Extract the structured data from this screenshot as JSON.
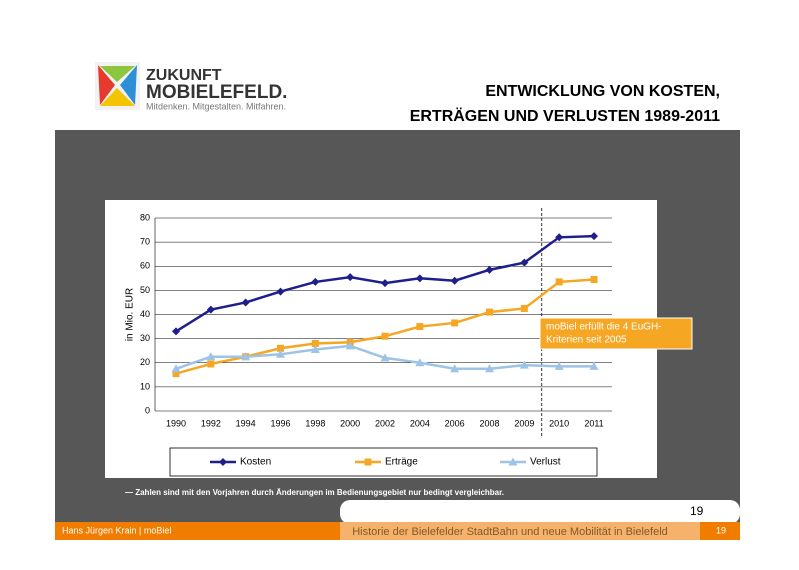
{
  "logo": {
    "line1": "ZUKUNFT",
    "line2": "MOBIELEFELD.",
    "tagline": "Mitdenken. Mitgestalten. Mitfahren."
  },
  "header": {
    "title_lines": [
      "ENTWICKLUNG VON KOSTEN,",
      "ERTRÄGEN UND VERLUSTEN 1989-2011"
    ]
  },
  "chart_data": {
    "type": "line",
    "y_label": "in Mio. EUR",
    "categories": [
      "1990",
      "1992",
      "1994",
      "1996",
      "1998",
      "2000",
      "2002",
      "2004",
      "2006",
      "2008",
      "2009",
      "2010",
      "2011"
    ],
    "series": [
      {
        "name": "Kosten",
        "color": "#1f1f8c",
        "marker": "diamond",
        "values": [
          33,
          42,
          45,
          49.5,
          53.5,
          55.5,
          53,
          55,
          54,
          58.5,
          61.5,
          72,
          72.5
        ]
      },
      {
        "name": "Erträge",
        "color": "#f5a623",
        "marker": "square",
        "values": [
          15.5,
          19.5,
          22.5,
          26,
          28,
          28.5,
          31,
          35,
          36.5,
          41,
          42.5,
          53.5,
          54.5
        ]
      },
      {
        "name": "Verlust",
        "color": "#9dc3e6",
        "marker": "triangle",
        "values": [
          17.5,
          22.5,
          22.5,
          23.5,
          25.5,
          27,
          22,
          20,
          17.5,
          17.5,
          19,
          18.5,
          18.5
        ]
      }
    ],
    "ylim": [
      0,
      80
    ],
    "yticks": [
      0,
      10,
      20,
      30,
      40,
      50,
      60,
      70,
      80
    ],
    "grid": true,
    "annotation": {
      "lines": [
        "moBiel erfüllt die 4 EuGH-",
        "Kriterien seit 2005"
      ],
      "color": "#f5a623"
    }
  },
  "footnote": "— Zahlen sind mit den Vorjahren durch Änderungen im Bedienungsgebiet nur bedingt vergleichbar.",
  "page_number": "19",
  "footer": {
    "author": "Hans Jürgen Krain | moBiel",
    "topic": "Historie der Bielefelder StadtBahn und neue Mobilität in Bielefeld",
    "page": "19"
  }
}
